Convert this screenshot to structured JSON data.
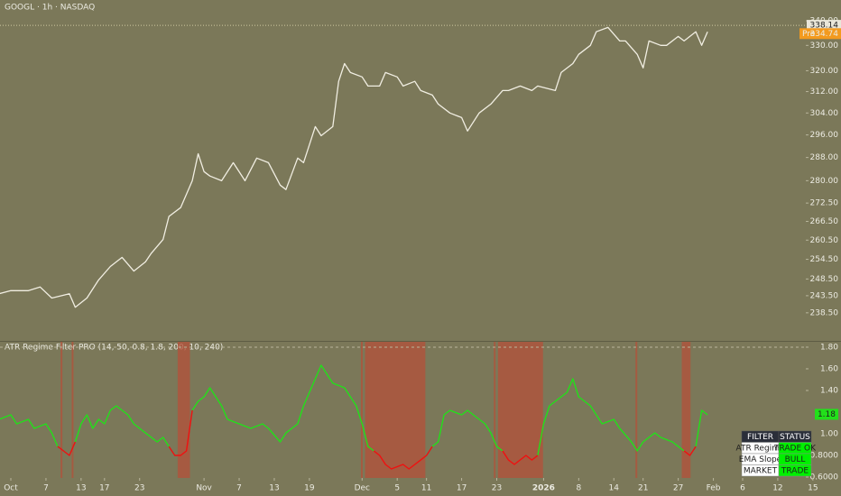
{
  "header": "GOOGL · 1h · NASDAQ",
  "chart_data": [
    {
      "type": "line",
      "x": [
        -2,
        0,
        3,
        5,
        7,
        10,
        11,
        13,
        15,
        17,
        19,
        21,
        23,
        24,
        26,
        27,
        29,
        31,
        32,
        33,
        34,
        36,
        38,
        40,
        42,
        44,
        46,
        47,
        49,
        50,
        52,
        53,
        55,
        56,
        57,
        58,
        60,
        61,
        63,
        64,
        66,
        67,
        69,
        70,
        72,
        73,
        75,
        77,
        78,
        80,
        82,
        84,
        85,
        87,
        89,
        90,
        93,
        94,
        96,
        97,
        99,
        100,
        102,
        104,
        105,
        107,
        108,
        109,
        111,
        112,
        114,
        115,
        117,
        118,
        119
      ],
      "series": [
        {
          "color": "#f1eee2",
          "values": [
            244.1,
            245.0,
            245.0,
            246.1,
            242.8,
            244.1,
            240.1,
            242.8,
            248.2,
            252.3,
            255.1,
            250.9,
            253.7,
            256.4,
            260.7,
            268.1,
            271.0,
            280.0,
            289.3,
            283.1,
            281.6,
            280.0,
            286.2,
            280.0,
            287.8,
            286.2,
            278.5,
            277.0,
            287.8,
            286.2,
            299.0,
            295.7,
            299.0,
            315.9,
            322.8,
            319.3,
            317.6,
            314.1,
            314.1,
            319.3,
            317.6,
            314.1,
            315.9,
            312.4,
            310.7,
            307.3,
            304.0,
            302.3,
            297.4,
            304.0,
            307.3,
            312.4,
            312.4,
            314.1,
            312.4,
            314.1,
            312.4,
            319.3,
            322.8,
            326.4,
            330.0,
            335.5,
            337.3,
            331.8,
            331.8,
            326.4,
            321.1,
            331.8,
            330.0,
            330.0,
            333.6,
            331.8,
            335.5,
            330.0,
            335.5
          ]
        }
      ],
      "xlim": [
        -1.85,
        141.8
      ],
      "ylim": [
        230.5,
        348.7
      ],
      "log_scale": true,
      "yticks": [
        {
          "value": 340,
          "label": "340.00"
        },
        {
          "value": 330,
          "label": "330.00"
        },
        {
          "value": 320,
          "label": "320.00"
        },
        {
          "value": 312,
          "label": "312.00"
        },
        {
          "value": 304,
          "label": "304.00"
        },
        {
          "value": 296,
          "label": "296.00"
        },
        {
          "value": 288,
          "label": "288.00"
        },
        {
          "value": 280,
          "label": "280.00"
        },
        {
          "value": 272.5,
          "label": "272.50"
        },
        {
          "value": 266.5,
          "label": "266.50"
        },
        {
          "value": 260.5,
          "label": "260.50"
        },
        {
          "value": 254.5,
          "label": "254.50"
        },
        {
          "value": 248.5,
          "label": "248.50"
        },
        {
          "value": 243.5,
          "label": "243.50"
        },
        {
          "value": 238.5,
          "label": "238.50"
        }
      ],
      "last_price": 338.14,
      "premarket": {
        "label": "Pre",
        "value": 334.74
      }
    },
    {
      "type": "line",
      "title": "ATR Regime Filter PRO (14, 50, 0.8, 1.8, 200, 10, 240)",
      "x": [
        -2,
        0,
        1,
        3,
        4,
        6,
        7,
        8,
        9,
        10,
        11,
        12,
        13,
        14,
        15,
        16,
        17,
        18,
        20,
        21,
        23,
        25,
        26,
        27,
        28,
        29,
        30,
        31,
        32,
        33,
        34,
        36,
        37,
        39,
        41,
        43,
        44,
        46,
        47,
        49,
        50,
        51,
        52,
        53,
        54,
        55,
        57,
        58,
        59,
        60,
        61,
        62,
        63,
        64,
        65,
        67,
        68,
        70,
        71,
        72,
        73,
        74,
        75,
        77,
        78,
        80,
        81,
        82,
        83,
        84,
        85,
        86,
        88,
        89,
        90,
        91,
        92,
        94,
        95,
        96,
        97,
        99,
        100,
        101,
        103,
        104,
        106,
        107,
        108,
        110,
        111,
        113,
        114,
        115,
        116,
        117,
        118,
        119
      ],
      "series": [
        {
          "color": "#22e01a",
          "values": [
            1.133,
            1.175,
            1.092,
            1.133,
            1.05,
            1.092,
            1.008,
            0.883,
            null,
            null,
            0.925,
            1.092,
            1.175,
            1.05,
            1.133,
            1.092,
            1.217,
            1.258,
            1.175,
            1.092,
            1.008,
            0.925,
            0.967,
            0.883,
            null,
            null,
            null,
            1.217,
            1.3,
            1.342,
            1.425,
            1.258,
            1.133,
            1.092,
            1.05,
            1.092,
            1.05,
            0.925,
            1.008,
            1.092,
            1.258,
            1.383,
            1.508,
            1.633,
            1.55,
            1.467,
            1.425,
            1.342,
            1.258,
            1.092,
            0.883,
            0.842,
            null,
            null,
            null,
            null,
            null,
            null,
            null,
            0.883,
            0.925,
            1.175,
            1.217,
            1.175,
            1.217,
            1.133,
            1.092,
            1.008,
            0.883,
            0.842,
            null,
            null,
            null,
            null,
            0.8,
            1.092,
            1.258,
            1.342,
            1.383,
            1.508,
            1.342,
            1.258,
            1.175,
            1.092,
            1.133,
            1.05,
            0.925,
            0.842,
            0.925,
            1.008,
            0.967,
            0.925,
            0.883,
            0.842,
            null,
            0.883,
            1.217,
            1.175
          ]
        },
        {
          "color": "#f01010",
          "values": [
            null,
            null,
            null,
            null,
            null,
            null,
            null,
            0.883,
            0.842,
            0.8,
            0.925,
            null,
            null,
            null,
            null,
            null,
            null,
            null,
            null,
            null,
            null,
            null,
            null,
            0.883,
            0.8,
            0.8,
            0.842,
            1.217,
            null,
            null,
            null,
            null,
            null,
            null,
            null,
            null,
            null,
            null,
            null,
            null,
            null,
            null,
            null,
            null,
            null,
            null,
            null,
            null,
            null,
            null,
            null,
            0.842,
            0.8,
            0.717,
            0.675,
            0.717,
            0.675,
            0.758,
            0.8,
            0.883,
            null,
            null,
            null,
            null,
            null,
            null,
            null,
            null,
            null,
            0.842,
            0.758,
            0.717,
            0.8,
            0.758,
            0.8,
            null,
            null,
            null,
            null,
            null,
            null,
            null,
            null,
            null,
            null,
            null,
            null,
            null,
            null,
            null,
            null,
            null,
            null,
            0.842,
            0.8,
            0.883,
            null,
            null
          ]
        }
      ],
      "bands": [
        [
          8.5,
          8.8
        ],
        [
          10.4,
          10.7
        ],
        [
          28.5,
          30.6
        ],
        [
          59.8,
          60.1
        ],
        [
          60.5,
          70.8
        ],
        [
          82.5,
          82.8
        ],
        [
          83.2,
          90.9
        ],
        [
          106.7,
          107.0
        ],
        [
          114.6,
          116.1
        ]
      ],
      "band_color": "#b4503a",
      "levels": [
        1.8
      ],
      "xlim": [
        -1.85,
        141.8
      ],
      "ylim": [
        0.592,
        1.858
      ],
      "yticks": [
        {
          "value": 1.8,
          "label": "1.80"
        },
        {
          "value": 1.6,
          "label": "1.60"
        },
        {
          "value": 1.4,
          "label": "1.40"
        },
        {
          "value": 1.0,
          "label": "1.00"
        },
        {
          "value": 0.8,
          "label": "0.8000"
        },
        {
          "value": 0.6,
          "label": "0.6000"
        }
      ],
      "last_value": 1.18,
      "xticks": [
        {
          "value": 0,
          "label": "Oct"
        },
        {
          "value": 6,
          "label": "7"
        },
        {
          "value": 12,
          "label": "13"
        },
        {
          "value": 16,
          "label": "17"
        },
        {
          "value": 22,
          "label": "23"
        },
        {
          "value": 33,
          "label": "Nov"
        },
        {
          "value": 39,
          "label": "7"
        },
        {
          "value": 45,
          "label": "13"
        },
        {
          "value": 51,
          "label": "19"
        },
        {
          "value": 60,
          "label": "Dec"
        },
        {
          "value": 66,
          "label": "5"
        },
        {
          "value": 71,
          "label": "11"
        },
        {
          "value": 77,
          "label": "17"
        },
        {
          "value": 83,
          "label": "23"
        },
        {
          "value": 91,
          "label": "2026"
        },
        {
          "value": 97,
          "label": "8"
        },
        {
          "value": 103,
          "label": "14"
        },
        {
          "value": 108,
          "label": "21"
        },
        {
          "value": 114,
          "label": "27"
        },
        {
          "value": 120,
          "label": "Feb"
        },
        {
          "value": 125,
          "label": "6"
        },
        {
          "value": 131,
          "label": "12"
        },
        {
          "value": 137,
          "label": "15"
        }
      ]
    }
  ],
  "table": {
    "header": [
      "FILTER",
      "STATUS"
    ],
    "rows": [
      [
        "ATR Regime",
        "TRADE OK"
      ],
      [
        "EMA Slope",
        "BULL"
      ],
      [
        "MARKET",
        "TRADE"
      ]
    ]
  }
}
